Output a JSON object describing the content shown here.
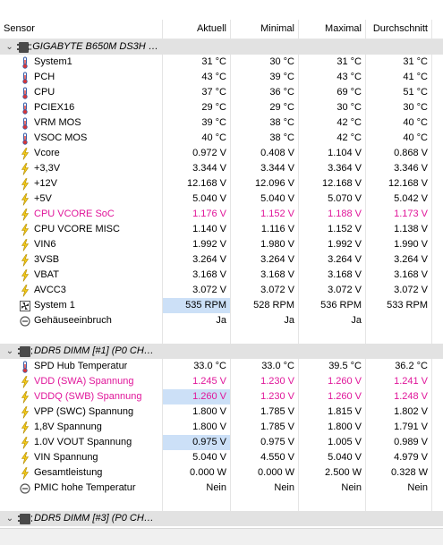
{
  "header": {
    "sensor": "Sensor",
    "current": "Aktuell",
    "minimum": "Minimal",
    "maximum": "Maximal",
    "average": "Durchschnitt"
  },
  "rows": [
    {
      "kind": "group",
      "label": "GIGABYTE B650M DS3H (IT...",
      "icon": "chip-icon"
    },
    {
      "kind": "data",
      "icon": "thermometer-icon",
      "label": "System1",
      "values": [
        "31 °C",
        "30 °C",
        "31 °C",
        "31 °C"
      ]
    },
    {
      "kind": "data",
      "icon": "thermometer-icon",
      "label": "PCH",
      "values": [
        "43 °C",
        "39 °C",
        "43 °C",
        "41 °C"
      ]
    },
    {
      "kind": "data",
      "icon": "thermometer-icon",
      "label": "CPU",
      "values": [
        "37 °C",
        "36 °C",
        "69 °C",
        "51 °C"
      ]
    },
    {
      "kind": "data",
      "icon": "thermometer-icon",
      "label": "PCIEX16",
      "values": [
        "29 °C",
        "29 °C",
        "30 °C",
        "30 °C"
      ]
    },
    {
      "kind": "data",
      "icon": "thermometer-icon",
      "label": "VRM MOS",
      "values": [
        "39 °C",
        "38 °C",
        "42 °C",
        "40 °C"
      ]
    },
    {
      "kind": "data",
      "icon": "thermometer-icon",
      "label": "VSOC MOS",
      "values": [
        "40 °C",
        "38 °C",
        "42 °C",
        "40 °C"
      ]
    },
    {
      "kind": "data",
      "icon": "lightning-icon",
      "label": "Vcore",
      "values": [
        "0.972 V",
        "0.408 V",
        "1.104 V",
        "0.868 V"
      ]
    },
    {
      "kind": "data",
      "icon": "lightning-icon",
      "label": "+3,3V",
      "values": [
        "3.344 V",
        "3.344 V",
        "3.364 V",
        "3.346 V"
      ]
    },
    {
      "kind": "data",
      "icon": "lightning-icon",
      "label": "+12V",
      "values": [
        "12.168 V",
        "12.096 V",
        "12.168 V",
        "12.168 V"
      ]
    },
    {
      "kind": "data",
      "icon": "lightning-icon",
      "label": "+5V",
      "values": [
        "5.040 V",
        "5.040 V",
        "5.070 V",
        "5.042 V"
      ]
    },
    {
      "kind": "data",
      "icon": "lightning-icon",
      "label": "CPU VCORE SoC",
      "values": [
        "1.176 V",
        "1.152 V",
        "1.188 V",
        "1.173 V"
      ],
      "color": "pink"
    },
    {
      "kind": "data",
      "icon": "lightning-icon",
      "label": "CPU VCORE MISC",
      "values": [
        "1.140 V",
        "1.116 V",
        "1.152 V",
        "1.138 V"
      ]
    },
    {
      "kind": "data",
      "icon": "lightning-icon",
      "label": "VIN6",
      "values": [
        "1.992 V",
        "1.980 V",
        "1.992 V",
        "1.990 V"
      ]
    },
    {
      "kind": "data",
      "icon": "lightning-icon",
      "label": "3VSB",
      "values": [
        "3.264 V",
        "3.264 V",
        "3.264 V",
        "3.264 V"
      ]
    },
    {
      "kind": "data",
      "icon": "lightning-icon",
      "label": "VBAT",
      "values": [
        "3.168 V",
        "3.168 V",
        "3.168 V",
        "3.168 V"
      ]
    },
    {
      "kind": "data",
      "icon": "lightning-icon",
      "label": "AVCC3",
      "values": [
        "3.072 V",
        "3.072 V",
        "3.072 V",
        "3.072 V"
      ]
    },
    {
      "kind": "data",
      "icon": "fan-icon",
      "label": "System 1",
      "values": [
        "535 RPM",
        "528 RPM",
        "536 RPM",
        "533 RPM"
      ],
      "highlight": true
    },
    {
      "kind": "data",
      "icon": "status-circle-icon",
      "label": "Gehäuseeinbruch",
      "values": [
        "Ja",
        "Ja",
        "Ja",
        ""
      ]
    },
    {
      "kind": "empty"
    },
    {
      "kind": "group",
      "label": "DDR5 DIMM [#1] (P0 CHA...",
      "icon": "chip-icon"
    },
    {
      "kind": "data",
      "icon": "thermometer-icon",
      "label": "SPD Hub Temperatur",
      "values": [
        "33.0 °C",
        "33.0 °C",
        "39.5 °C",
        "36.2 °C"
      ]
    },
    {
      "kind": "data",
      "icon": "lightning-icon",
      "label": "VDD (SWA) Spannung",
      "values": [
        "1.245 V",
        "1.230 V",
        "1.260 V",
        "1.241 V"
      ],
      "color": "pink"
    },
    {
      "kind": "data",
      "icon": "lightning-icon",
      "label": "VDDQ (SWB) Spannung",
      "values": [
        "1.260 V",
        "1.230 V",
        "1.260 V",
        "1.248 V"
      ],
      "color": "pink",
      "highlight": true
    },
    {
      "kind": "data",
      "icon": "lightning-icon",
      "label": "VPP (SWC) Spannung",
      "values": [
        "1.800 V",
        "1.785 V",
        "1.815 V",
        "1.802 V"
      ]
    },
    {
      "kind": "data",
      "icon": "lightning-icon",
      "label": "1,8V Spannung",
      "values": [
        "1.800 V",
        "1.785 V",
        "1.800 V",
        "1.791 V"
      ]
    },
    {
      "kind": "data",
      "icon": "lightning-icon",
      "label": "1.0V VOUT Spannung",
      "values": [
        "0.975 V",
        "0.975 V",
        "1.005 V",
        "0.989 V"
      ],
      "highlight": true
    },
    {
      "kind": "data",
      "icon": "lightning-icon",
      "label": "VIN Spannung",
      "values": [
        "5.040 V",
        "4.550 V",
        "5.040 V",
        "4.979 V"
      ]
    },
    {
      "kind": "data",
      "icon": "lightning-icon",
      "label": "Gesamtleistung",
      "values": [
        "0.000 W",
        "0.000 W",
        "2.500 W",
        "0.328 W"
      ]
    },
    {
      "kind": "data",
      "icon": "status-circle-icon",
      "label": "PMIC hohe Temperatur",
      "values": [
        "Nein",
        "Nein",
        "Nein",
        "Nein"
      ]
    },
    {
      "kind": "empty"
    },
    {
      "kind": "group",
      "label": "DDR5 DIMM [#3] (P0 CHA...",
      "icon": "chip-icon"
    }
  ]
}
